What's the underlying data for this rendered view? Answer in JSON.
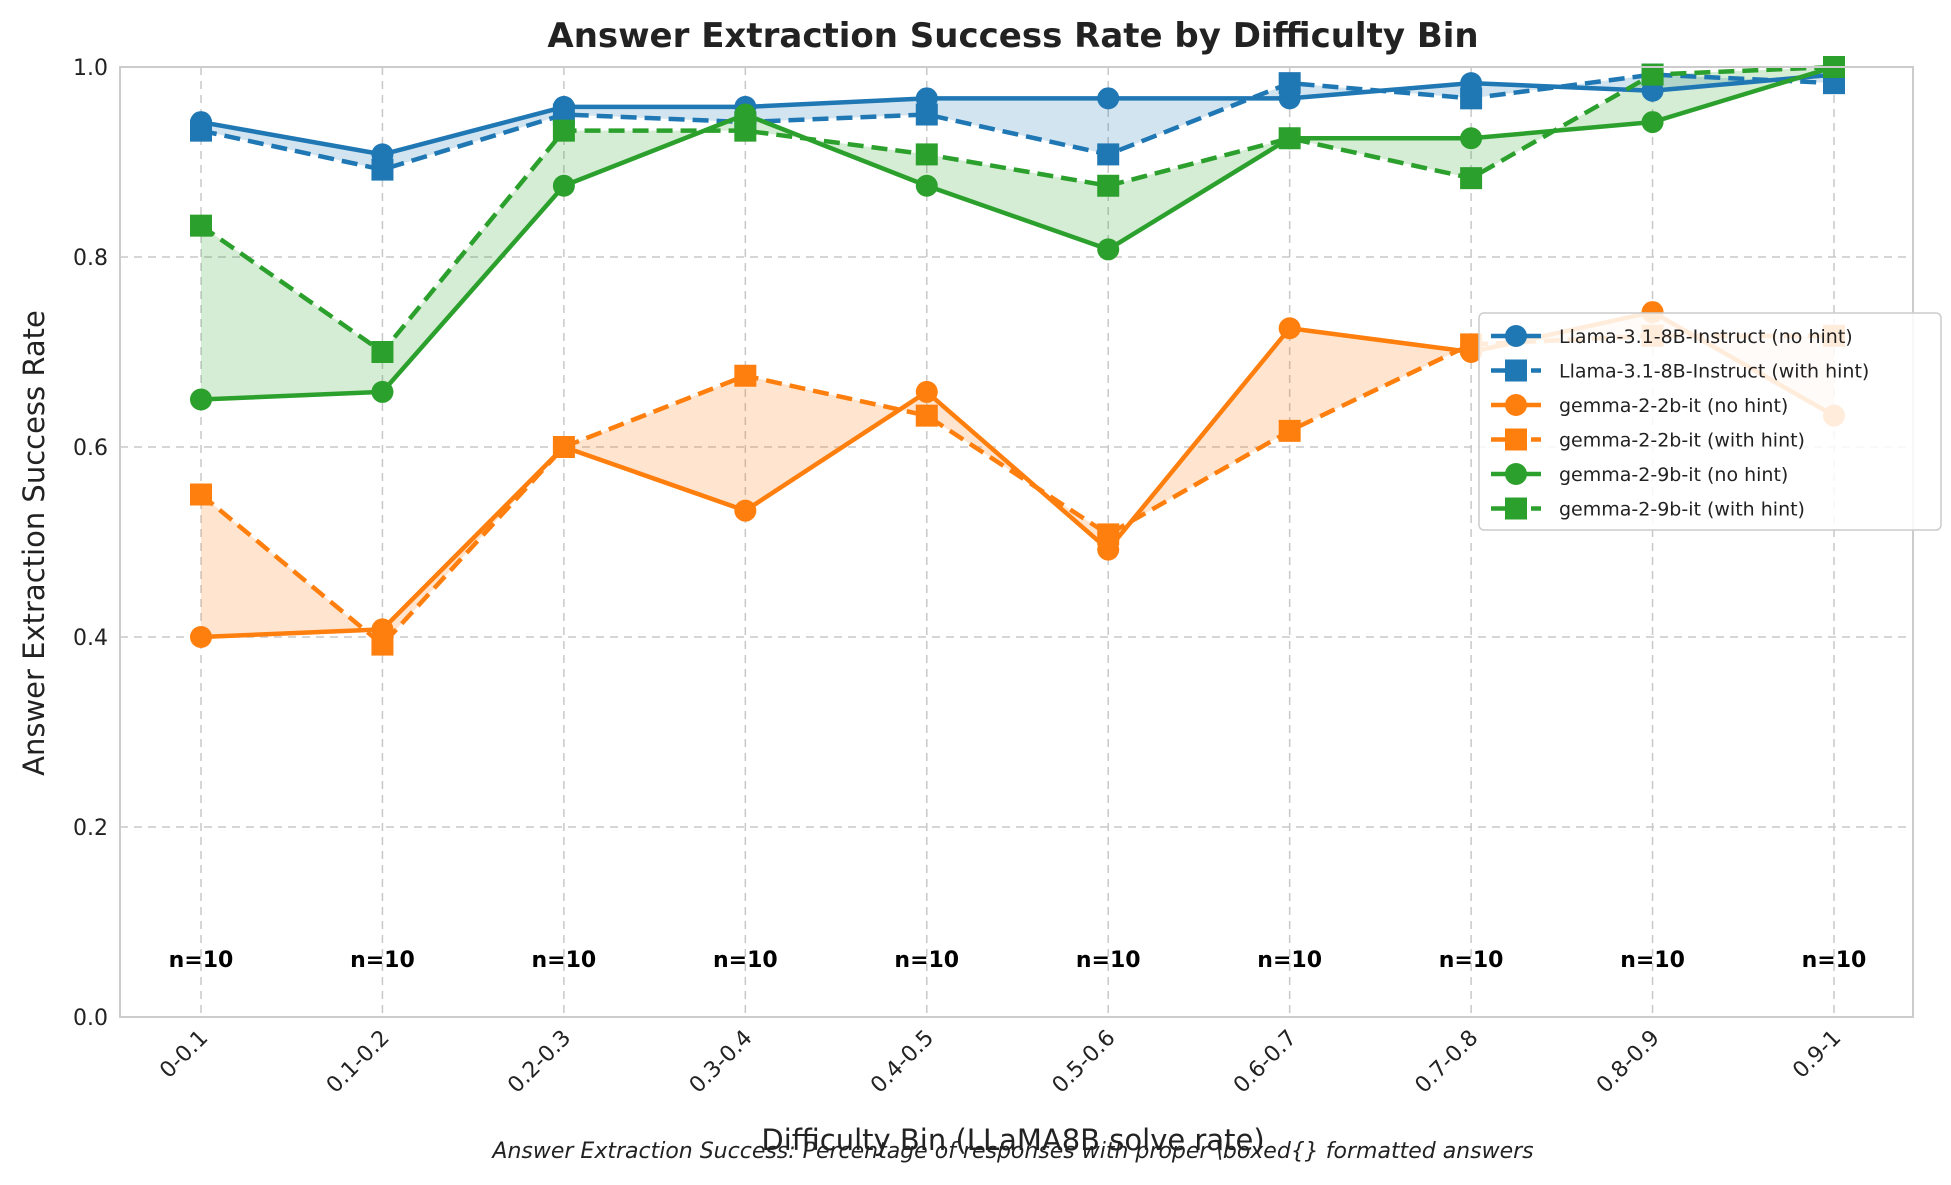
{
  "chart_data": {
    "type": "line",
    "title": "Answer Extraction Success Rate by Difficulty Bin",
    "xlabel": "Difficulty Bin (LLaMA8B solve rate)",
    "ylabel": "Answer Extraction Success Rate",
    "caption": "Answer Extraction Success: Percentage of responses with proper \\boxed{} formatted answers",
    "categories": [
      "0-0.1",
      "0.1-0.2",
      "0.2-0.3",
      "0.3-0.4",
      "0.4-0.5",
      "0.5-0.6",
      "0.6-0.7",
      "0.7-0.8",
      "0.8-0.9",
      "0.9-1"
    ],
    "ylim": [
      0,
      1
    ],
    "yticks": [
      "0.0",
      "0.2",
      "0.4",
      "0.6",
      "0.8",
      "1.0"
    ],
    "grid": true,
    "legend_position": "right",
    "counts": [
      "n=10",
      "n=10",
      "n=10",
      "n=10",
      "n=10",
      "n=10",
      "n=10",
      "n=10",
      "n=10",
      "n=10"
    ],
    "series": [
      {
        "name": "Llama-3.1-8B-Instruct (no hint)",
        "color": "#1f77b4",
        "marker": "circle",
        "dash": false,
        "values": [
          0.942,
          0.908,
          0.958,
          0.958,
          0.967,
          0.967,
          0.967,
          0.983,
          0.975,
          0.992
        ]
      },
      {
        "name": "Llama-3.1-8B-Instruct (with hint)",
        "color": "#1f77b4",
        "marker": "square",
        "dash": true,
        "values": [
          0.933,
          0.892,
          0.95,
          0.942,
          0.95,
          0.908,
          0.983,
          0.967,
          0.992,
          0.983
        ]
      },
      {
        "name": "gemma-2-2b-it (no hint)",
        "color": "#ff7f0e",
        "marker": "circle",
        "dash": false,
        "values": [
          0.4,
          0.408,
          0.6,
          0.533,
          0.658,
          0.492,
          0.725,
          0.7,
          0.742,
          0.633
        ]
      },
      {
        "name": "gemma-2-2b-it (with hint)",
        "color": "#ff7f0e",
        "marker": "square",
        "dash": true,
        "values": [
          0.55,
          0.392,
          0.6,
          0.675,
          0.633,
          0.508,
          0.617,
          0.708,
          0.717,
          0.717
        ]
      },
      {
        "name": "gemma-2-9b-it (no hint)",
        "color": "#2ca02c",
        "marker": "circle",
        "dash": false,
        "values": [
          0.65,
          0.658,
          0.875,
          0.95,
          0.875,
          0.808,
          0.925,
          0.925,
          0.942,
          1.0
        ]
      },
      {
        "name": "gemma-2-9b-it (with hint)",
        "color": "#2ca02c",
        "marker": "square",
        "dash": true,
        "values": [
          0.833,
          0.7,
          0.933,
          0.933,
          0.908,
          0.875,
          0.925,
          0.883,
          0.992,
          1.0
        ]
      }
    ],
    "fills": [
      {
        "between": [
          0,
          1
        ],
        "color": "#1f77b4"
      },
      {
        "between": [
          2,
          3
        ],
        "color": "#ff7f0e"
      },
      {
        "between": [
          4,
          5
        ],
        "color": "#2ca02c"
      }
    ]
  }
}
